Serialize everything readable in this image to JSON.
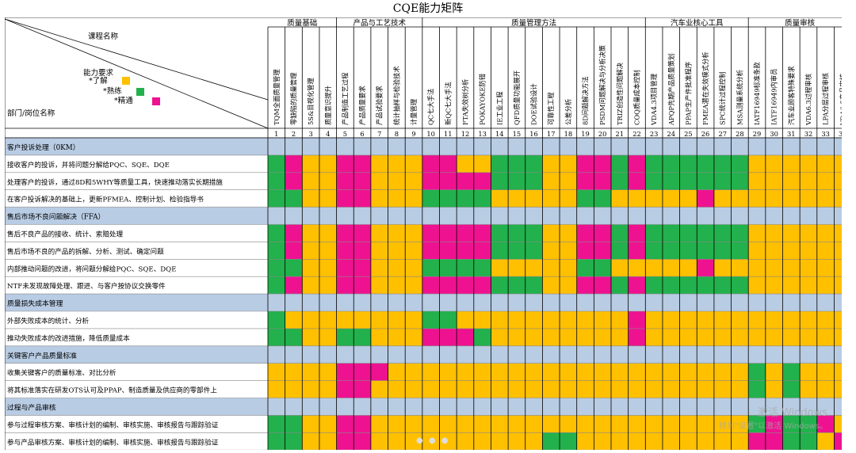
{
  "title": "CQE能力矩阵",
  "header": {
    "course_label": "课程名称",
    "ability_label": "能力要求",
    "legend": [
      {
        "label": "*了解",
        "level": "Y"
      },
      {
        "label": "*熟练",
        "level": "G"
      },
      {
        "label": "*精通",
        "level": "M"
      }
    ],
    "dept_label": "部门/岗位名称"
  },
  "colors": {
    "Y": "#FFC000",
    "G": "#22B14C",
    "M": "#EE1290",
    "B": "#B8CCE4",
    "section": "#B8CCE4"
  },
  "categories": [
    {
      "name": "质量基础",
      "span": 4
    },
    {
      "name": "产品与工艺技术",
      "span": 5
    },
    {
      "name": "质量管理方法",
      "span": 13
    },
    {
      "name": "汽车业核心工具",
      "span": 6
    },
    {
      "name": "质量审核",
      "span": 6
    }
  ],
  "courses": [
    "TQM全面质量管理",
    "零缺陷的质量管理",
    "5S&目视化管理",
    "质量意识提升",
    "产品制造工艺过程",
    "产品质量要求",
    "产品试验要求",
    "统计抽样与检验技术",
    "计量管理",
    "QC七大手法",
    "新QC七大手法",
    "FTA失效树分析",
    "POKAYOKE防错",
    "IE工业工程",
    "QFD质量功能展开",
    "DOE试验设计",
    "可靠性工程",
    "公差分析",
    "8D问题解决方法",
    "PSDM问题解决与分析决策",
    "TRIZ创造性问题解决",
    "COQ质量成本控制",
    "VDA4.3项目管理",
    "APQP先期产品质量策划",
    "PPAP生产件批准程序",
    "FMEA潜在失效模式分析",
    "SPC统计过程控制",
    "MSA测量系统分析",
    "IATF16949标准条款",
    "IATF16949内审员",
    "汽车业顾客特殊要求",
    "VDA6.3过程审核",
    "LPA分层过程审核",
    "VDA6.5产品审核"
  ],
  "numbers": [
    "1",
    "2",
    "3",
    "4",
    "5",
    "6",
    "7",
    "8",
    "9",
    "10",
    "11",
    "12",
    "13",
    "14",
    "15",
    "16",
    "17",
    "18",
    "19",
    "20",
    "21",
    "22",
    "23",
    "24",
    "25",
    "26",
    "27",
    "28",
    "29",
    "30",
    "31",
    "32",
    "33",
    "34"
  ],
  "rows": [
    {
      "label": "客户投诉处理（0KM）",
      "section": true
    },
    {
      "label": "接收客户的投诉，并将问题分解给PQC、SQE、DQE",
      "levels": "GMYYMMYYYMMYYGGGYYMMGMGGGGGGYYYYYY"
    },
    {
      "label": "处理客户的投诉，通过8D和5WHY等质量工具，快速推动落实长期措施",
      "levels": "GMYYMMYYYMMMMGGGYYMMGMGGGGGGYYYYYY"
    },
    {
      "label": "在客户投诉解决的基础上，更新PFMEA、控制计划、检验指导书",
      "levels": "GGYYMMYYYGGGGYYYYYGGYYYYYMYYYYYYYY"
    },
    {
      "label": "售后市场不良问题解决（FFA）",
      "section": true
    },
    {
      "label": "售后不良产品的接收、统计、索赔处理",
      "levels": "GMYYMMYYYMMMMGGGYYMMGMGGGGGGYYYYYY"
    },
    {
      "label": "售后市场不良的产品的拆解、分析、测试、确定问题",
      "levels": "GMYYMMYYYMMMMGGGYYMMGMGGGGGGYYYYYY"
    },
    {
      "label": "内部推动问题的改进，将问题分解给PQC、SQE、DQE",
      "levels": "GGYYMMYYYGGGGYYYYYGGYYYYYMYYYYYYYY"
    },
    {
      "label": "NTF未发现故障处理、跟进、与客户按协议交换零件",
      "levels": "GMYYMMYYYMMMMGGGYYMMGMGGGGGGYYYYYY"
    },
    {
      "label": "质量损失成本管理",
      "section": true
    },
    {
      "label": "外部失败成本的统计、分析",
      "levels": "GYYYYYYYYGGYYYYYYYYYYMYYYYYYYYYYYY"
    },
    {
      "label": "推动失败成本的改进措施，降低质量成本",
      "levels": "GGYYGGYYYMMMGYYYYYYYYMYYYYYYYYYYYY"
    },
    {
      "label": "关键客户产品质量标准",
      "section": true
    },
    {
      "label": "收集关键客户的质量标准、对比分析",
      "levels": "YYYYMMMYYYYYYYYYYYYYYYYYYYYYGYGYYY"
    },
    {
      "label": "将其标准落实在研发OTS认可及PPAP、制造质量及供应商的零部件上",
      "levels": "YYYYMMYYYYYYYYYYYYYYYYYYYYYYGYGYYY"
    },
    {
      "label": "过程与产品审核",
      "section": true
    },
    {
      "label": "参与过程审核方案、审核计划的编制、审核实施、审核报告与跟踪验证",
      "levels": "GGYYMMYYYYYYYYYYYYYYYYYYYYYYGMGGMY"
    },
    {
      "label": "参与产品审核方案、审核计划的编制、审核实施、审核报告与跟踪验证",
      "levels": "GGYYMMYYYYYYYYYYGGYYYYYYYYYYMMGGYM"
    }
  ],
  "watermark": {
    "line1": "激活 Windows",
    "line2": "转到\"设置\"以激活 Windows。"
  },
  "pager": "● ● ●"
}
